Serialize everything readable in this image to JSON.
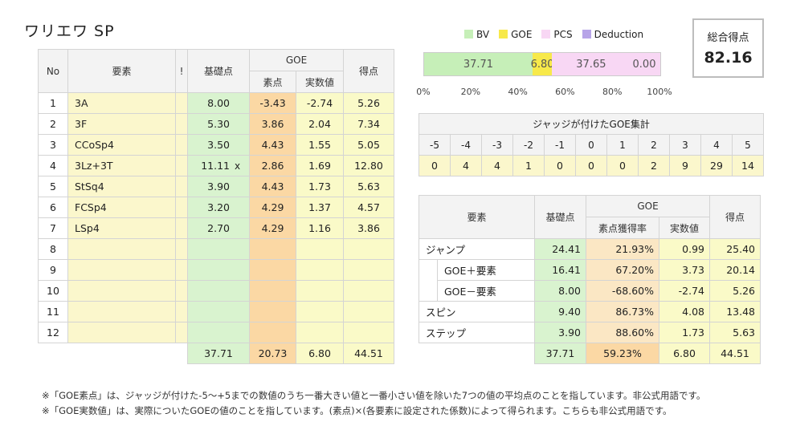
{
  "title": "ワリエワ SP",
  "main_table": {
    "headers": {
      "no": "No",
      "element": "要素",
      "flag": "!",
      "base": "基礎点",
      "goe": "GOE",
      "goe_raw": "素点",
      "goe_actual": "実数値",
      "score": "得点"
    },
    "rows": [
      {
        "no": "1",
        "element": "3A",
        "flag": "",
        "base": "8.00",
        "mark": "",
        "goe_raw": "-3.43",
        "goe_actual": "-2.74",
        "score": "5.26"
      },
      {
        "no": "2",
        "element": "3F",
        "flag": "",
        "base": "5.30",
        "mark": "",
        "goe_raw": "3.86",
        "goe_actual": "2.04",
        "score": "7.34"
      },
      {
        "no": "3",
        "element": "CCoSp4",
        "flag": "",
        "base": "3.50",
        "mark": "",
        "goe_raw": "4.43",
        "goe_actual": "1.55",
        "score": "5.05"
      },
      {
        "no": "4",
        "element": "3Lz+3T",
        "flag": "",
        "base": "11.11",
        "mark": "x",
        "goe_raw": "2.86",
        "goe_actual": "1.69",
        "score": "12.80"
      },
      {
        "no": "5",
        "element": "StSq4",
        "flag": "",
        "base": "3.90",
        "mark": "",
        "goe_raw": "4.43",
        "goe_actual": "1.73",
        "score": "5.63"
      },
      {
        "no": "6",
        "element": "FCSp4",
        "flag": "",
        "base": "3.20",
        "mark": "",
        "goe_raw": "4.29",
        "goe_actual": "1.37",
        "score": "4.57"
      },
      {
        "no": "7",
        "element": "LSp4",
        "flag": "",
        "base": "2.70",
        "mark": "",
        "goe_raw": "4.29",
        "goe_actual": "1.16",
        "score": "3.86"
      },
      {
        "no": "8",
        "element": "",
        "flag": "",
        "base": "",
        "mark": "",
        "goe_raw": "",
        "goe_actual": "",
        "score": ""
      },
      {
        "no": "9",
        "element": "",
        "flag": "",
        "base": "",
        "mark": "",
        "goe_raw": "",
        "goe_actual": "",
        "score": ""
      },
      {
        "no": "10",
        "element": "",
        "flag": "",
        "base": "",
        "mark": "",
        "goe_raw": "",
        "goe_actual": "",
        "score": ""
      },
      {
        "no": "11",
        "element": "",
        "flag": "",
        "base": "",
        "mark": "",
        "goe_raw": "",
        "goe_actual": "",
        "score": ""
      },
      {
        "no": "12",
        "element": "",
        "flag": "",
        "base": "",
        "mark": "",
        "goe_raw": "",
        "goe_actual": "",
        "score": ""
      }
    ],
    "totals": {
      "base": "37.71",
      "goe_raw": "20.73",
      "goe_actual": "6.80",
      "score": "44.51"
    }
  },
  "bar_chart": {
    "legend": [
      {
        "label": "BV",
        "color": "#c6efb8"
      },
      {
        "label": "GOE",
        "color": "#f7e94a"
      },
      {
        "label": "PCS",
        "color": "#f8d7f4"
      },
      {
        "label": "Deduction",
        "color": "#b7a4e8"
      }
    ],
    "segments": [
      {
        "label": "37.71",
        "value": 37.71,
        "color": "#c6efb8"
      },
      {
        "label": "6.80",
        "value": 6.8,
        "color": "#f7e94a"
      },
      {
        "label": "37.65",
        "value": 37.65,
        "color": "#f8d7f4"
      },
      {
        "label": "0.00",
        "value": 0.0,
        "color": "#b7a4e8"
      }
    ],
    "axis_ticks": [
      "0%",
      "20%",
      "40%",
      "60%",
      "80%",
      "100%"
    ]
  },
  "total": {
    "label": "総合得点",
    "value": "82.16"
  },
  "judges": {
    "title": "ジャッジが付けたGOE集計",
    "grades": [
      "-5",
      "-4",
      "-3",
      "-2",
      "-1",
      "0",
      "1",
      "2",
      "3",
      "4",
      "5"
    ],
    "counts": [
      "0",
      "4",
      "4",
      "1",
      "0",
      "0",
      "0",
      "2",
      "9",
      "29",
      "14"
    ]
  },
  "summary": {
    "headers": {
      "element": "要素",
      "base": "基礎点",
      "goe": "GOE",
      "rate": "素点獲得率",
      "actual": "実数値",
      "score": "得点"
    },
    "rows": [
      {
        "label": "ジャンプ",
        "indent": false,
        "base": "24.41",
        "rate": "21.93%",
        "actual": "0.99",
        "score": "25.40"
      },
      {
        "label": "GOE＋要素",
        "indent": true,
        "base": "16.41",
        "rate": "67.20%",
        "actual": "3.73",
        "score": "20.14"
      },
      {
        "label": "GOE－要素",
        "indent": true,
        "base": "8.00",
        "rate": "-68.60%",
        "actual": "-2.74",
        "score": "5.26"
      },
      {
        "label": "スピン",
        "indent": false,
        "base": "9.40",
        "rate": "86.73%",
        "actual": "4.08",
        "score": "13.48"
      },
      {
        "label": "ステップ",
        "indent": false,
        "base": "3.90",
        "rate": "88.60%",
        "actual": "1.73",
        "score": "5.63"
      }
    ],
    "totals": {
      "base": "37.71",
      "rate": "59.23%",
      "actual": "6.80",
      "score": "44.51"
    }
  },
  "notes": [
    "※「GOE素点」は、ジャッジが付けた-5～+5までの数値のうち一番大きい値と一番小さい値を除いた7つの値の平均点のことを指しています。非公式用語です。",
    "※「GOE実数値」は、実際についたGOEの値のことを指しています。(素点)×(各要素に設定された係数)によって得られます。こちらも非公式用語です。"
  ]
}
